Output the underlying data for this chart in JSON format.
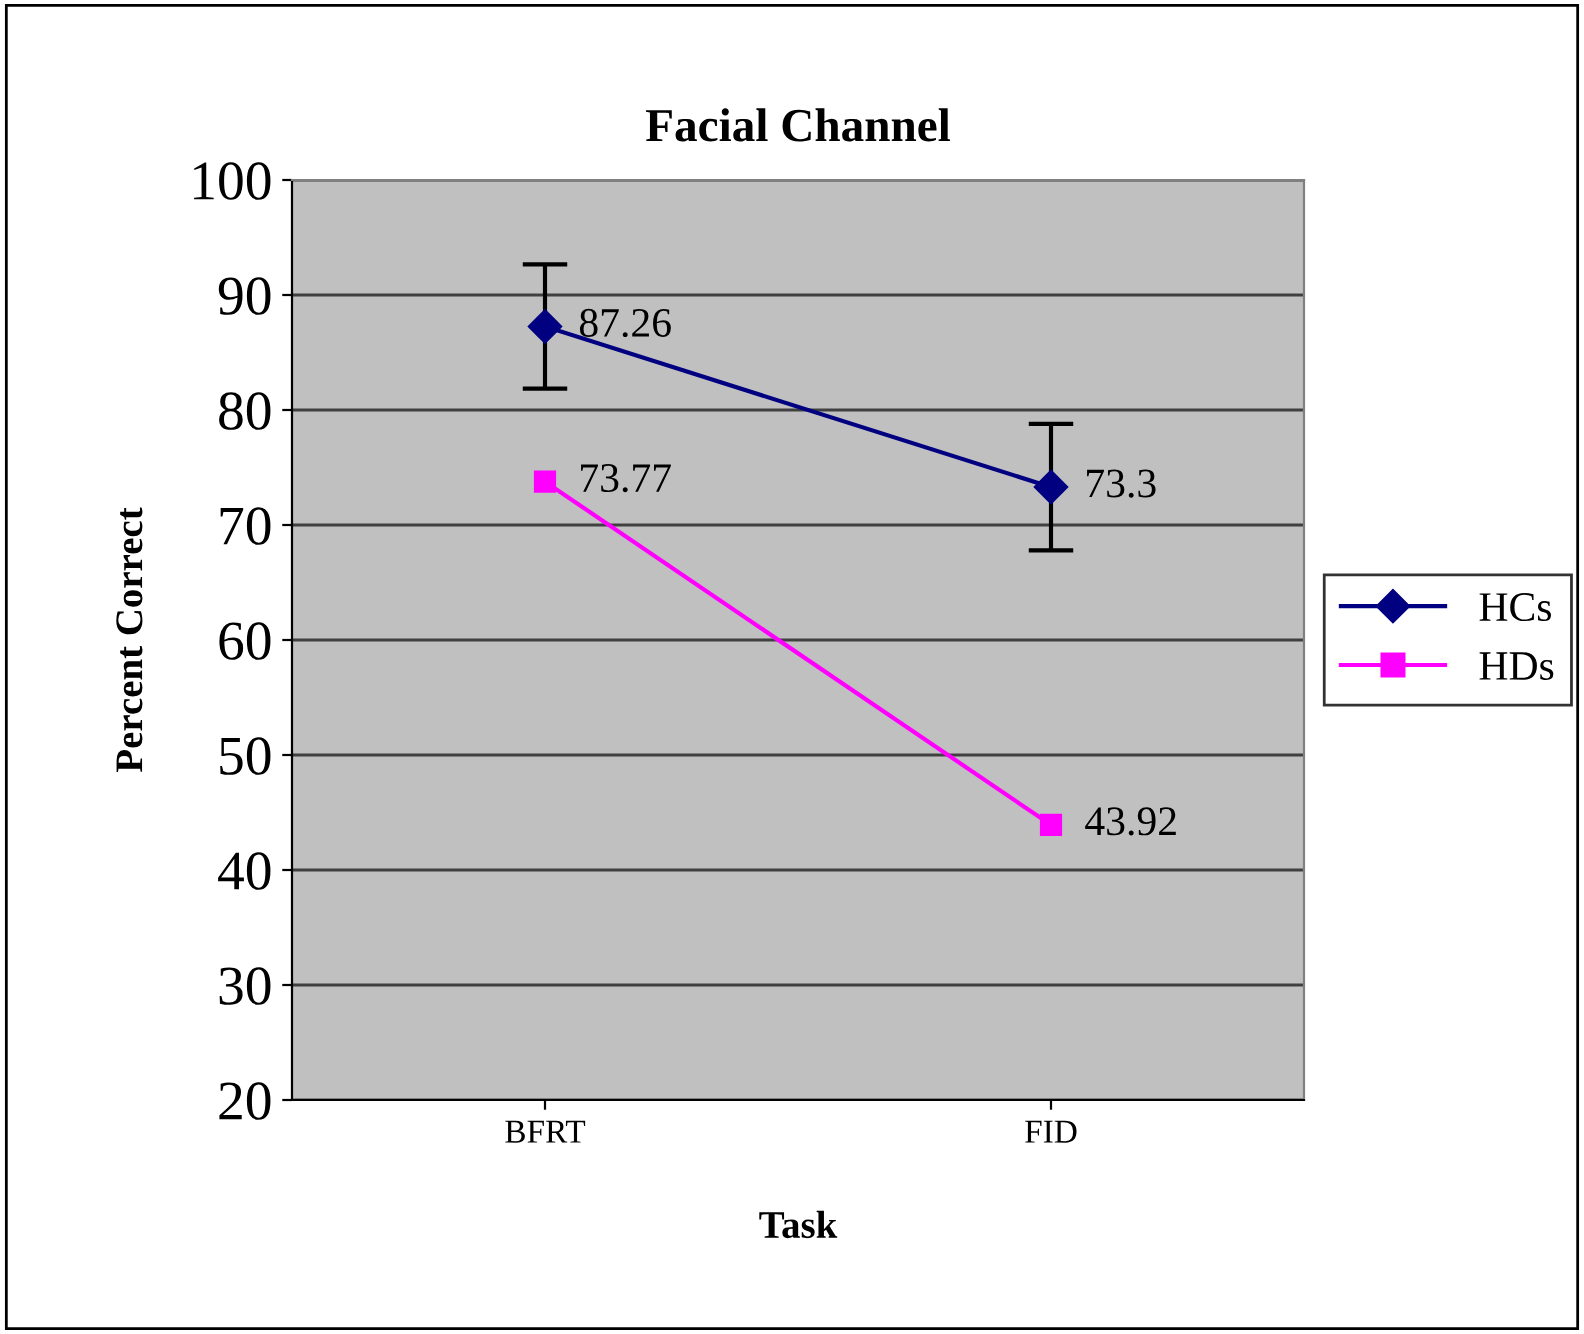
{
  "chart_data": {
    "type": "line",
    "title": "Facial Channel",
    "xlabel": "Task",
    "ylabel": "Percent Correct",
    "categories": [
      "BFRT",
      "FID"
    ],
    "series": [
      {
        "name": "HCs",
        "color": "#000080",
        "marker": "diamond",
        "values": [
          87.26,
          73.3
        ],
        "errors": [
          5.4,
          5.5
        ]
      },
      {
        "name": "HDs",
        "color": "#ff00ff",
        "marker": "square",
        "values": [
          73.77,
          43.92
        ]
      }
    ],
    "ylim": [
      20,
      100
    ],
    "yticks": [
      20,
      30,
      40,
      50,
      60,
      70,
      80,
      90,
      100
    ],
    "grid": "y",
    "legend": "right",
    "data_labels": true,
    "line_style": "solid"
  }
}
